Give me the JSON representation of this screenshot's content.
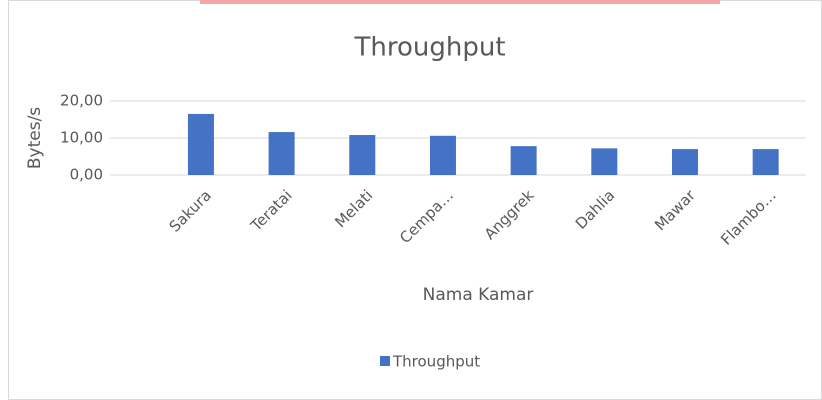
{
  "chart_data": {
    "type": "bar",
    "title": "Throughput",
    "y_label": "Bytes/s",
    "x_label": "Nama Kamar",
    "categories": [
      "Sakura",
      "Teratai",
      "Melati",
      "Cempa…",
      "Anggrek",
      "Dahlia",
      "Mawar",
      "Flambo…"
    ],
    "series": [
      {
        "name": "Throughput",
        "color": "#4472c4",
        "values": [
          16.5,
          11.6,
          10.8,
          10.6,
          7.8,
          7.2,
          7.0,
          7.0
        ]
      }
    ],
    "ylim": [
      0,
      20
    ],
    "yticks": [
      {
        "value": 0,
        "label": "0,00"
      },
      {
        "value": 10,
        "label": "10,00"
      },
      {
        "value": 20,
        "label": "20,00"
      }
    ],
    "grid": true,
    "legend": "bottom"
  }
}
